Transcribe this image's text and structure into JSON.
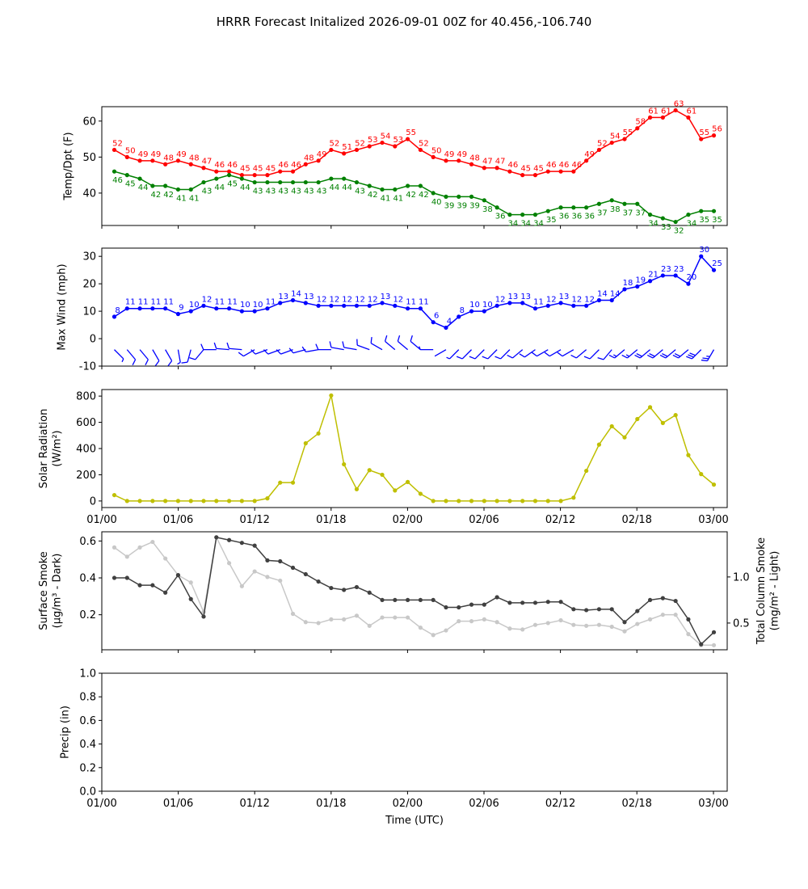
{
  "title": "HRRR Forecast Initalized 2026-09-01 00Z for 40.456,-106.740",
  "colors": {
    "temp": "#ff0000",
    "dewpoint": "#008000",
    "wind": "#0000ff",
    "solar": "#bfbf00",
    "smoke_surface": "#404040",
    "smoke_column": "#c8c8c8"
  },
  "chart_data": [
    {
      "type": "line",
      "ylabel": "Temp/Dpt (F)",
      "ylim": [
        31,
        64
      ],
      "yticks": [
        40,
        50,
        60
      ],
      "x": [
        "01/01",
        "01/02",
        "01/03",
        "01/04",
        "01/05",
        "01/06",
        "01/07",
        "01/08",
        "01/09",
        "01/10",
        "01/11",
        "01/12",
        "01/13",
        "01/14",
        "01/15",
        "01/16",
        "01/17",
        "01/18",
        "01/19",
        "01/20",
        "01/21",
        "01/22",
        "01/23",
        "02/00",
        "02/01",
        "02/02",
        "02/03",
        "02/04",
        "02/05",
        "02/06",
        "02/07",
        "02/08",
        "02/09",
        "02/10",
        "02/11",
        "02/12",
        "02/13",
        "02/14",
        "02/15",
        "02/16",
        "02/17",
        "02/18",
        "02/19",
        "02/20",
        "02/21",
        "02/22",
        "02/23",
        "03/00"
      ],
      "series": [
        {
          "name": "",
          "values": [
            52,
            50,
            49,
            49,
            48,
            49,
            48,
            47,
            46,
            46,
            45,
            45,
            45,
            46,
            46,
            48,
            49,
            52,
            51,
            52,
            53,
            54,
            53,
            55,
            52,
            50,
            49,
            49,
            48,
            47,
            47,
            46,
            45,
            45,
            46,
            46,
            46,
            49,
            52,
            54,
            55,
            58,
            61,
            61,
            63,
            61,
            55,
            56
          ]
        },
        {
          "name": "",
          "values": [
            46,
            45,
            44,
            42,
            42,
            41,
            41,
            43,
            44,
            45,
            44,
            43,
            43,
            43,
            43,
            43,
            43,
            44,
            44,
            43,
            42,
            41,
            41,
            42,
            42,
            40,
            39,
            39,
            39,
            38,
            36,
            34,
            34,
            34,
            35,
            36,
            36,
            36,
            37,
            38,
            37,
            37,
            34,
            33,
            32,
            34,
            35,
            35
          ]
        }
      ]
    },
    {
      "type": "line",
      "ylabel": "Max Wind (mph)",
      "ylim": [
        -10,
        33
      ],
      "yticks": [
        -10,
        0,
        10,
        20,
        30
      ],
      "x": [
        "01/01",
        "01/02",
        "01/03",
        "01/04",
        "01/05",
        "01/06",
        "01/07",
        "01/08",
        "01/09",
        "01/10",
        "01/11",
        "01/12",
        "01/13",
        "01/14",
        "01/15",
        "01/16",
        "01/17",
        "01/18",
        "01/19",
        "01/20",
        "01/21",
        "01/22",
        "01/23",
        "02/00",
        "02/01",
        "02/02",
        "02/03",
        "02/04",
        "02/05",
        "02/06",
        "02/07",
        "02/08",
        "02/09",
        "02/10",
        "02/11",
        "02/12",
        "02/13",
        "02/14",
        "02/15",
        "02/16",
        "02/17",
        "02/18",
        "02/19",
        "02/20",
        "02/21",
        "02/22",
        "02/23",
        "03/00"
      ],
      "series": [
        {
          "name": "",
          "values": [
            8,
            11,
            11,
            11,
            11,
            9,
            10,
            12,
            11,
            11,
            10,
            10,
            11,
            13,
            14,
            13,
            12,
            12,
            12,
            12,
            12,
            13,
            12,
            11,
            11,
            6,
            4,
            8,
            10,
            10,
            12,
            13,
            13,
            11,
            12,
            13,
            12,
            12,
            14,
            14,
            18,
            19,
            21,
            23,
            23,
            20,
            30,
            25
          ]
        }
      ],
      "barb_directions_deg": [
        315,
        320,
        320,
        330,
        330,
        350,
        15,
        40,
        90,
        95,
        95,
        60,
        70,
        70,
        70,
        75,
        80,
        90,
        100,
        100,
        110,
        120,
        130,
        130,
        130,
        90,
        60,
        45,
        45,
        45,
        45,
        45,
        50,
        55,
        60,
        60,
        60,
        50,
        45,
        40,
        50,
        50,
        50,
        50,
        50,
        50,
        45,
        30
      ]
    },
    {
      "type": "line",
      "ylabel": "Solar Radiation",
      "ylabel_unit": "(W/m²)",
      "ylim": [
        -50,
        850
      ],
      "yticks": [
        0,
        200,
        400,
        600,
        800
      ],
      "x": [
        "01/01",
        "01/02",
        "01/03",
        "01/04",
        "01/05",
        "01/06",
        "01/07",
        "01/08",
        "01/09",
        "01/10",
        "01/11",
        "01/12",
        "01/13",
        "01/14",
        "01/15",
        "01/16",
        "01/17",
        "01/18",
        "01/19",
        "01/20",
        "01/21",
        "01/22",
        "01/23",
        "02/00",
        "02/01",
        "02/02",
        "02/03",
        "02/04",
        "02/05",
        "02/06",
        "02/07",
        "02/08",
        "02/09",
        "02/10",
        "02/11",
        "02/12",
        "02/13",
        "02/14",
        "02/15",
        "02/16",
        "02/17",
        "02/18",
        "02/19",
        "02/20",
        "02/21",
        "02/22",
        "02/23",
        "03/00"
      ],
      "series": [
        {
          "name": "",
          "values": [
            45,
            0,
            0,
            0,
            0,
            0,
            0,
            0,
            0,
            0,
            0,
            0,
            20,
            140,
            140,
            440,
            515,
            805,
            280,
            90,
            235,
            200,
            80,
            145,
            55,
            0,
            0,
            0,
            0,
            0,
            0,
            0,
            0,
            0,
            0,
            0,
            25,
            230,
            430,
            570,
            485,
            625,
            715,
            595,
            655,
            350,
            205,
            125
          ]
        }
      ]
    },
    {
      "type": "line",
      "ylabel": "Surface Smoke",
      "ylabel_unit": "(μg/m³ - Dark)",
      "ylim": [
        0.01,
        0.65
      ],
      "yticks": [
        0.2,
        0.4,
        0.6
      ],
      "y2label": "Total Column Smoke",
      "y2label_unit": "(mg/m² - Light)",
      "y2lim": [
        0.21,
        1.49
      ],
      "y2ticks": [
        0.5,
        1.0
      ],
      "x": [
        "01/01",
        "01/02",
        "01/03",
        "01/04",
        "01/05",
        "01/06",
        "01/07",
        "01/08",
        "01/09",
        "01/10",
        "01/11",
        "01/12",
        "01/13",
        "01/14",
        "01/15",
        "01/16",
        "01/17",
        "01/18",
        "01/19",
        "01/20",
        "01/21",
        "01/22",
        "01/23",
        "02/00",
        "02/01",
        "02/02",
        "02/03",
        "02/04",
        "02/05",
        "02/06",
        "02/07",
        "02/08",
        "02/09",
        "02/10",
        "02/11",
        "02/12",
        "02/13",
        "02/14",
        "02/15",
        "02/16",
        "02/17",
        "02/18",
        "02/19",
        "02/20",
        "02/21",
        "02/22",
        "02/23",
        "03/00"
      ],
      "series": [
        {
          "name": "",
          "axis": "left",
          "values": [
            0.4,
            0.4,
            0.36,
            0.36,
            0.32,
            0.415,
            0.285,
            0.19,
            0.62,
            0.605,
            0.59,
            0.575,
            0.495,
            0.49,
            0.455,
            0.42,
            0.38,
            0.345,
            0.335,
            0.35,
            0.32,
            0.28,
            0.28,
            0.28,
            0.28,
            0.28,
            0.24,
            0.24,
            0.255,
            0.255,
            0.295,
            0.265,
            0.265,
            0.265,
            0.27,
            0.27,
            0.23,
            0.225,
            0.23,
            0.23,
            0.16,
            0.22,
            0.28,
            0.29,
            0.275,
            0.175,
            0.04,
            0.105
          ]
        },
        {
          "name": "",
          "axis": "right",
          "values": [
            1.32,
            1.22,
            1.32,
            1.38,
            1.2,
            1.02,
            0.94,
            0.62,
            1.43,
            1.15,
            0.9,
            1.06,
            1.0,
            0.96,
            0.6,
            0.51,
            0.5,
            0.54,
            0.54,
            0.58,
            0.47,
            0.56,
            0.56,
            0.56,
            0.45,
            0.37,
            0.42,
            0.52,
            0.52,
            0.54,
            0.51,
            0.44,
            0.43,
            0.48,
            0.5,
            0.53,
            0.48,
            0.47,
            0.48,
            0.46,
            0.41,
            0.49,
            0.54,
            0.59,
            0.59,
            0.38,
            0.26,
            0.26
          ]
        }
      ]
    },
    {
      "type": "line",
      "ylabel": "Precip (in)",
      "xlabel": "Time (UTC)",
      "ylim": [
        0,
        1
      ],
      "yticks": [
        0.0,
        0.2,
        0.4,
        0.6,
        0.8,
        1.0
      ],
      "series": []
    }
  ],
  "x_axis": {
    "tick_labels": [
      "01/00",
      "01/06",
      "01/12",
      "01/18",
      "02/00",
      "02/06",
      "02/12",
      "02/18",
      "03/00"
    ],
    "xlabel": "Time (UTC)"
  }
}
